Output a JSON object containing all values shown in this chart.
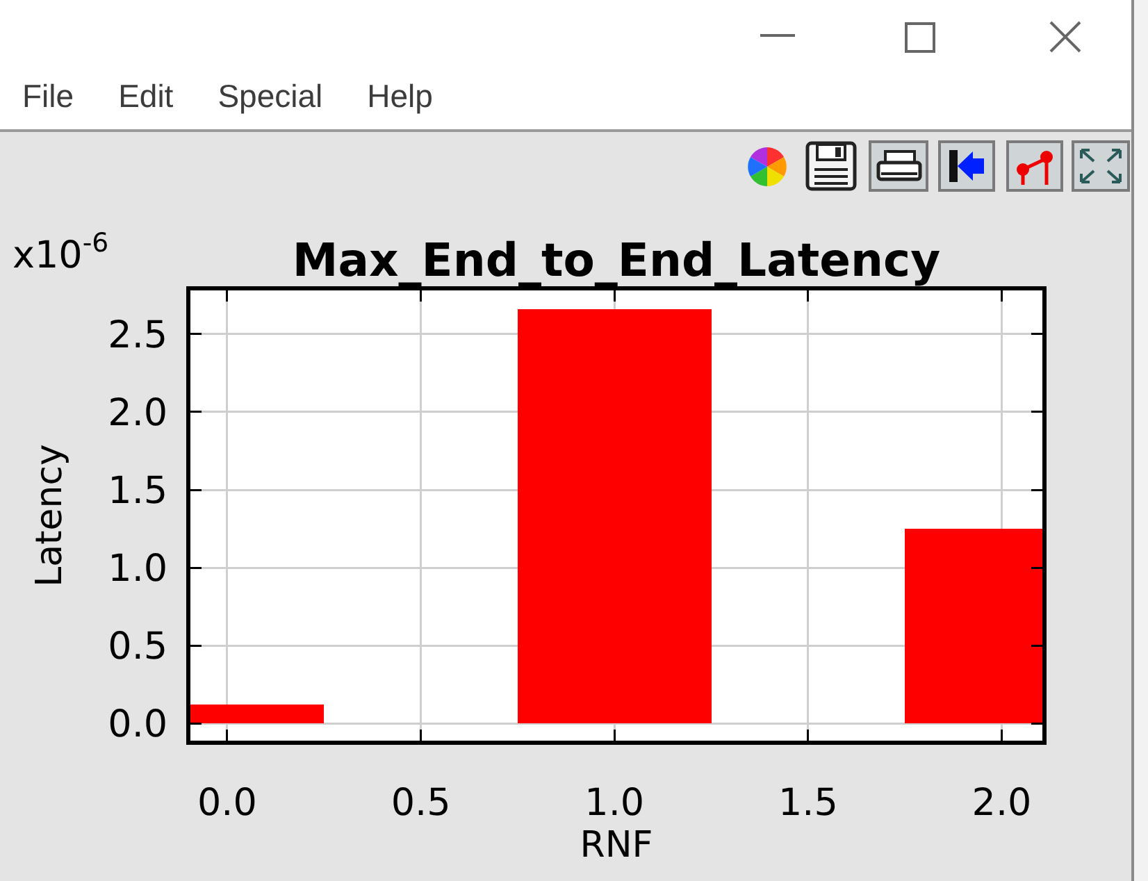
{
  "chart_data": {
    "type": "bar",
    "title": "Max_End_to_End_Latency",
    "xlabel": "RNF",
    "ylabel": "Latency",
    "x": [
      0,
      1,
      2
    ],
    "values": [
      0.12,
      2.66,
      1.25
    ],
    "color": "#ff0000",
    "xlim": [
      -0.095,
      2.105
    ],
    "xticks": [
      {
        "value": 0,
        "label": "0.0"
      },
      {
        "value": 0.5,
        "label": "0.5"
      },
      {
        "value": 1,
        "label": "1.0"
      },
      {
        "value": 1.5,
        "label": "1.5"
      },
      {
        "value": 2,
        "label": "2.0"
      }
    ],
    "ylim": [
      -0.11,
      2.78
    ],
    "yticks": [
      {
        "value": 0,
        "label": "0.0"
      },
      {
        "value": 0.5,
        "label": "0.5"
      },
      {
        "value": 1,
        "label": "1.0"
      },
      {
        "value": 1.5,
        "label": "1.5"
      },
      {
        "value": 2,
        "label": "2.0"
      },
      {
        "value": 2.5,
        "label": "2.5"
      }
    ],
    "grid": true,
    "annotations": [
      "x10$^{-6}$",
      "File",
      "Edit",
      "Special",
      "Help"
    ]
  }
}
